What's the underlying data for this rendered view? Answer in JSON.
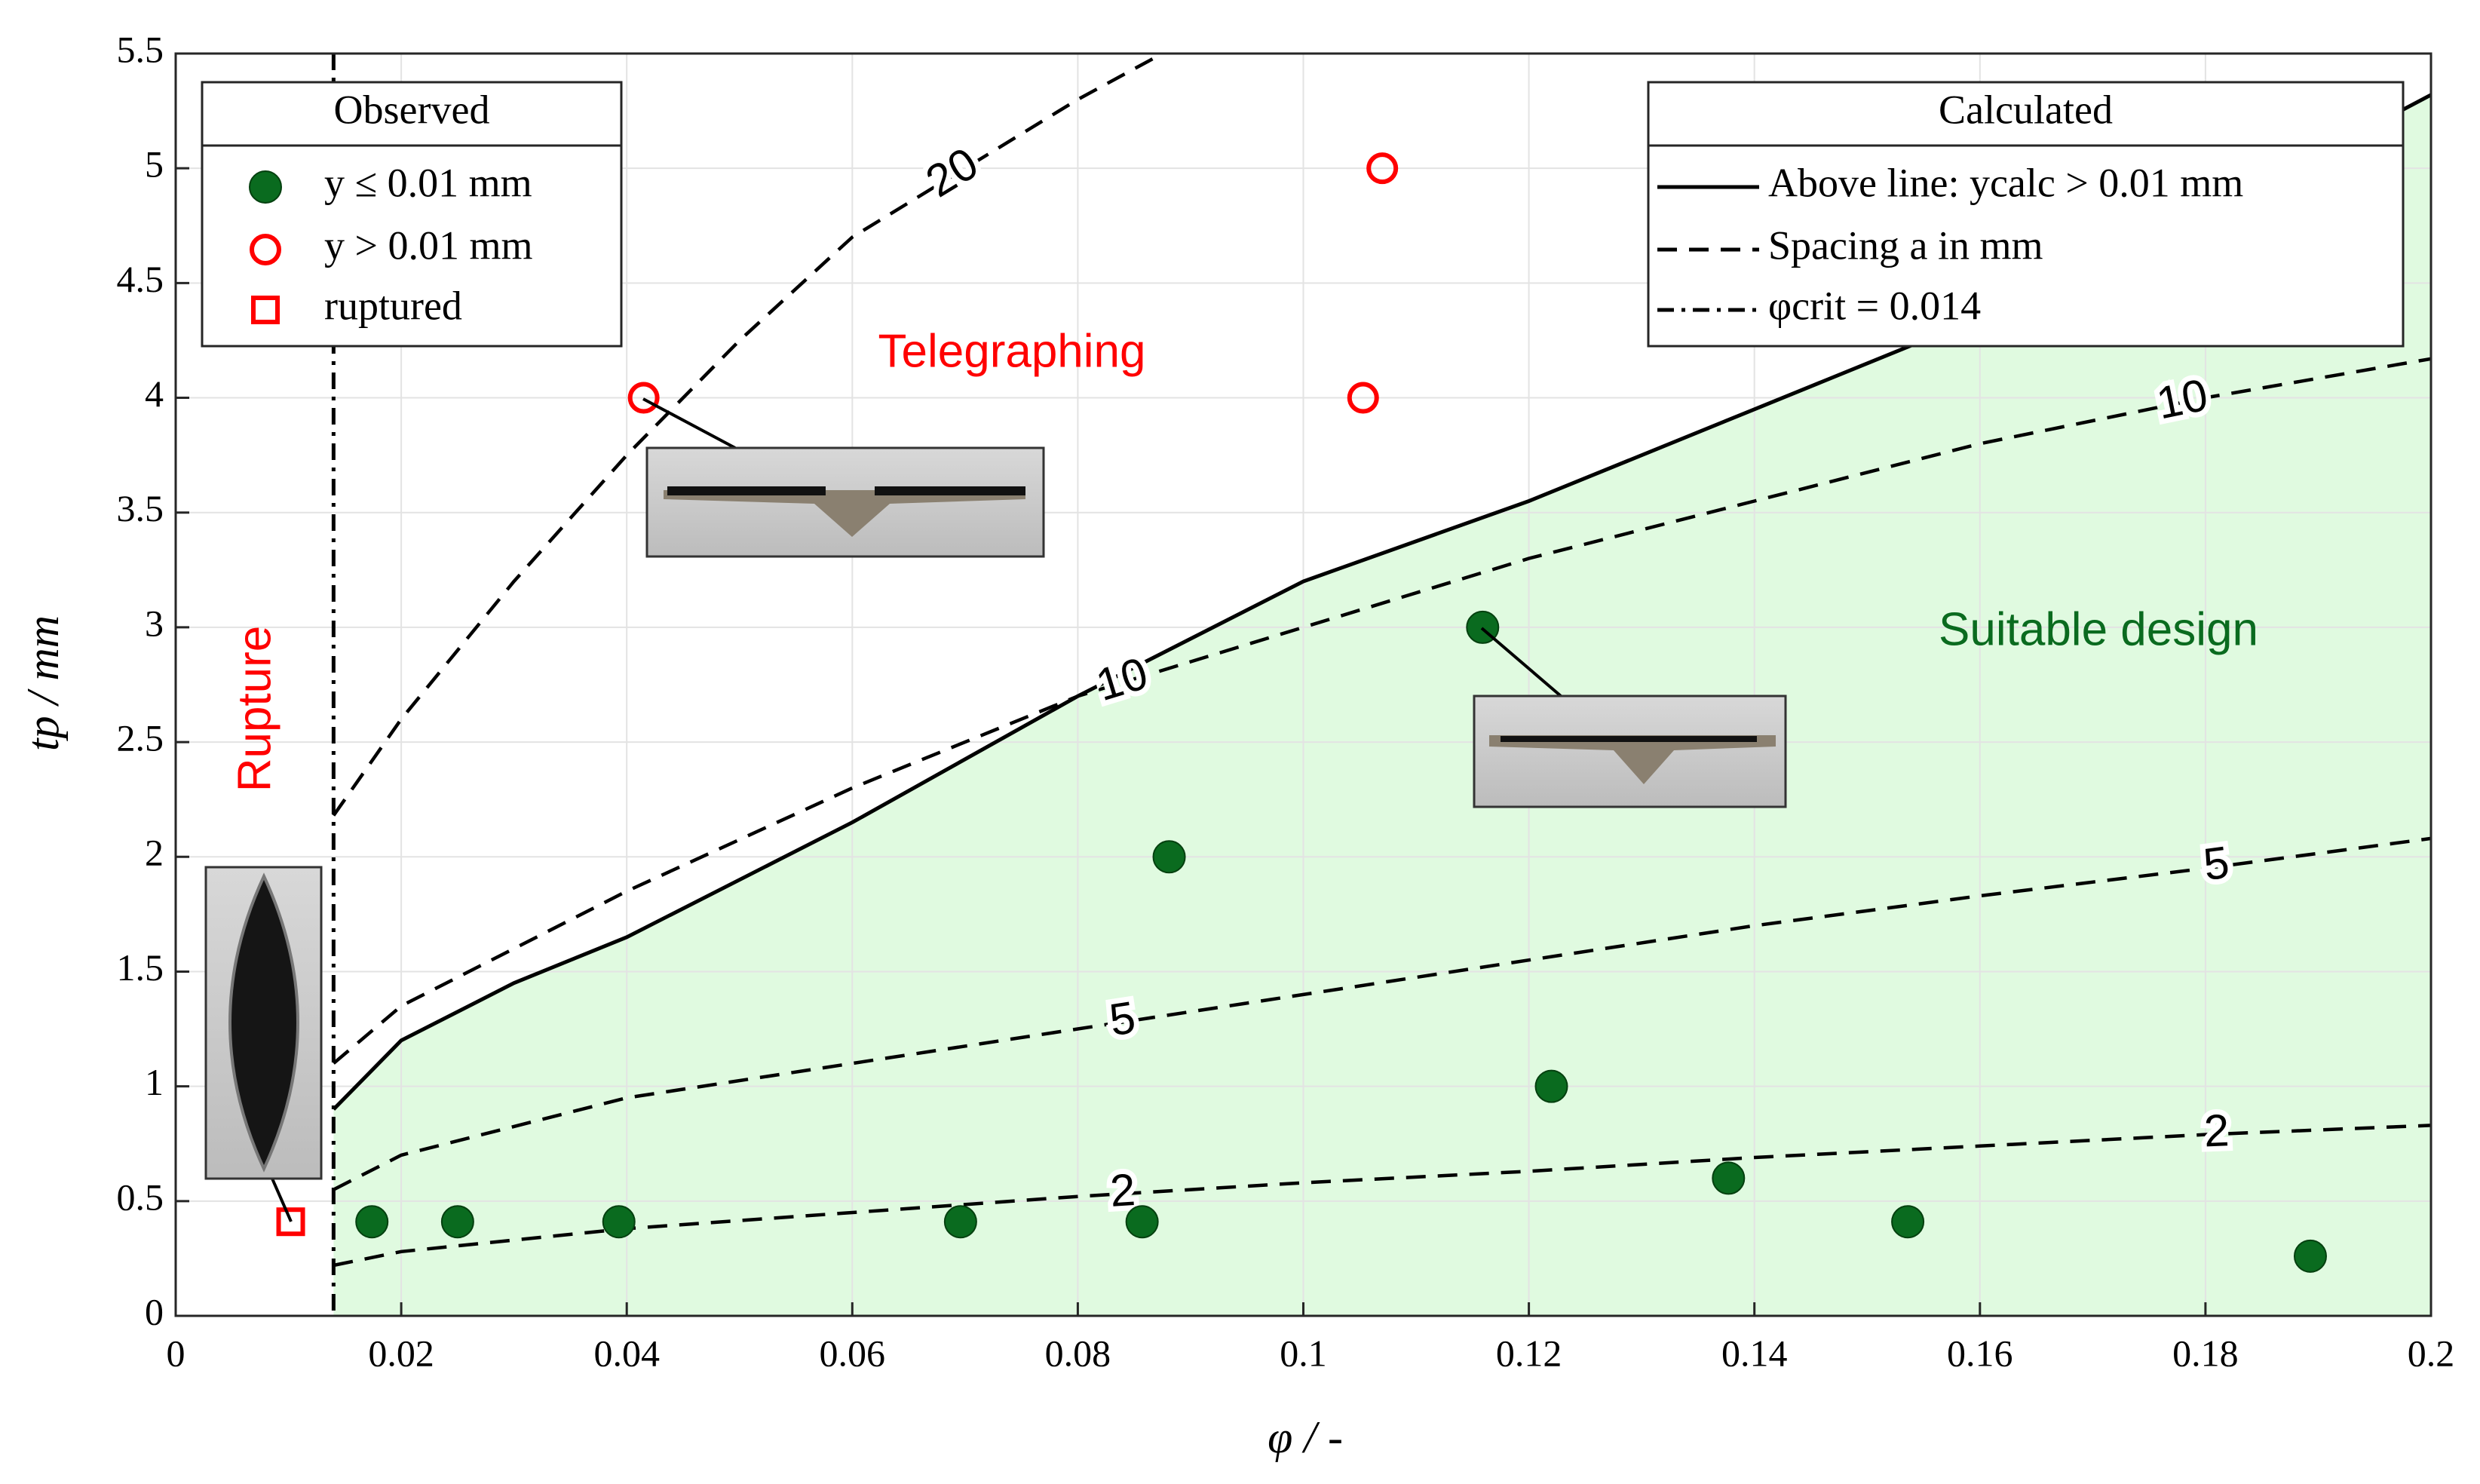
{
  "chart_data": {
    "type": "scatter",
    "xlabel": "φ / -",
    "ylabel": "tp / mm",
    "xlim": [
      0,
      0.2
    ],
    "ylim": [
      0,
      5.5
    ],
    "xticks": [
      0,
      0.02,
      0.04,
      0.06,
      0.08,
      0.1,
      0.12,
      0.14,
      0.16,
      0.18,
      0.2
    ],
    "yticks": [
      0,
      0.5,
      1,
      1.5,
      2,
      2.5,
      3,
      3.5,
      4,
      4.5,
      5,
      5.5
    ],
    "grid": true,
    "legends": [
      {
        "title": "Observed",
        "corner": "upper left"
      },
      {
        "title": "Calculated",
        "corner": "upper right"
      }
    ],
    "series": [
      {
        "name": "y ≤ 0.01 mm",
        "marker": "filled-circle",
        "color": "#0a6b1f",
        "x": [
          0.0174,
          0.025,
          0.0393,
          0.0696,
          0.0857,
          0.0881,
          0.1159,
          0.122,
          0.1377,
          0.1536,
          0.1893
        ],
        "values": [
          0.41,
          0.41,
          0.41,
          0.41,
          0.41,
          2.0,
          3.0,
          1.0,
          0.6,
          0.41,
          0.26
        ]
      },
      {
        "name": "y > 0.01 mm",
        "marker": "open-circle",
        "color": "#ff0000",
        "x": [
          0.0415,
          0.1053,
          0.107
        ],
        "values": [
          4.0,
          4.0,
          5.0
        ]
      },
      {
        "name": "ruptured",
        "marker": "open-square",
        "color": "#ff0000",
        "x": [
          0.0102
        ],
        "values": [
          0.41
        ]
      }
    ],
    "lines": [
      {
        "name": "Above line: ycalc > 0.01 mm",
        "style": "solid",
        "color": "#000000",
        "fill": "#e0fae0",
        "x": [
          0.014,
          0.02,
          0.03,
          0.04,
          0.06,
          0.08,
          0.1,
          0.12,
          0.14,
          0.16,
          0.18,
          0.2
        ],
        "values": [
          0.9,
          1.2,
          1.45,
          1.65,
          2.15,
          2.7,
          3.2,
          3.55,
          3.95,
          4.35,
          4.8,
          5.32
        ]
      },
      {
        "name": "Spacing a in mm",
        "style": "dashed",
        "color": "#000000",
        "curves": [
          {
            "label": "20",
            "x": [
              0.014,
              0.02,
              0.03,
              0.04,
              0.05,
              0.06,
              0.07,
              0.08,
              0.0875
            ],
            "values": [
              2.18,
              2.6,
              3.2,
              3.75,
              4.25,
              4.7,
              5.0,
              5.3,
              5.5
            ]
          },
          {
            "label": "10",
            "x": [
              0.014,
              0.02,
              0.04,
              0.06,
              0.08,
              0.1,
              0.12,
              0.14,
              0.16,
              0.18,
              0.2
            ],
            "values": [
              1.1,
              1.35,
              1.85,
              2.3,
              2.7,
              3.0,
              3.3,
              3.55,
              3.8,
              4.0,
              4.17
            ]
          },
          {
            "label": "5",
            "x": [
              0.014,
              0.02,
              0.04,
              0.06,
              0.08,
              0.1,
              0.12,
              0.14,
              0.16,
              0.18,
              0.2
            ],
            "values": [
              0.55,
              0.7,
              0.95,
              1.1,
              1.25,
              1.4,
              1.55,
              1.7,
              1.83,
              1.95,
              2.08
            ]
          },
          {
            "label": "2",
            "x": [
              0.014,
              0.02,
              0.04,
              0.06,
              0.08,
              0.1,
              0.12,
              0.14,
              0.16,
              0.18,
              0.2
            ],
            "values": [
              0.22,
              0.28,
              0.38,
              0.45,
              0.52,
              0.58,
              0.63,
              0.69,
              0.74,
              0.79,
              0.83
            ]
          }
        ]
      },
      {
        "name": "φcrit = 0.014",
        "style": "dash-dot",
        "color": "#000000",
        "x": 0.014
      }
    ],
    "annotations": [
      {
        "text": "Telegraphing",
        "color": "#ff0000"
      },
      {
        "text": "Suitable design",
        "color": "#0a6b1f"
      },
      {
        "text": "Rupture",
        "color": "#ff0000"
      }
    ]
  }
}
